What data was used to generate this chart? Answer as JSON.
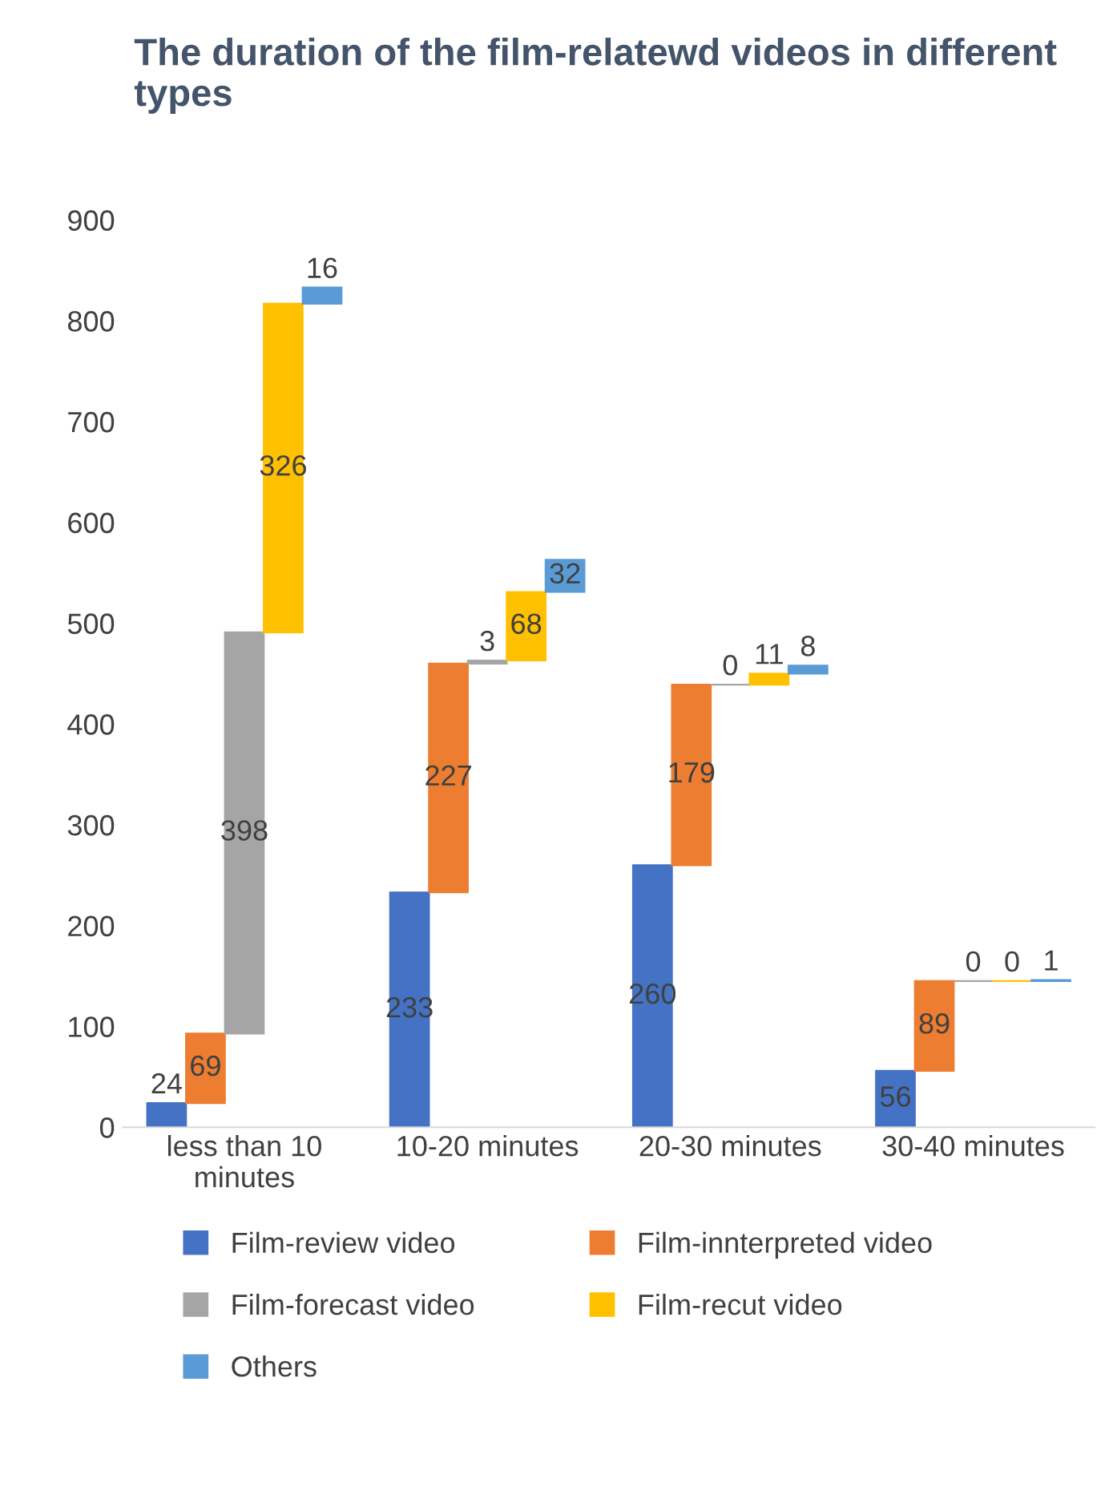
{
  "chart_data": {
    "type": "bar",
    "title": "The duration of the film-relatewd videos in different types",
    "categories": [
      "less than 10 minutes",
      "10-20 minutes",
      "20-30 minutes",
      "30-40 minutes"
    ],
    "series": [
      {
        "name": "Film-review video",
        "color": "#4472c4",
        "values": [
          24,
          233,
          260,
          56
        ],
        "base": [
          0,
          0,
          0,
          0
        ]
      },
      {
        "name": "Film-innterpreted video",
        "color": "#ed7d31",
        "values": [
          69,
          227,
          179,
          89
        ],
        "base": [
          24,
          233,
          260,
          56
        ]
      },
      {
        "name": "Film-forecast video",
        "color": "#a5a5a5",
        "values": [
          398,
          3,
          0,
          0
        ],
        "base": [
          93,
          460,
          439,
          145
        ]
      },
      {
        "name": "Film-recut video",
        "color": "#ffc000",
        "values": [
          326,
          68,
          11,
          0
        ],
        "base": [
          491,
          463,
          439,
          145
        ]
      },
      {
        "name": "Others",
        "color": "#5b9bd5",
        "values": [
          16,
          32,
          8,
          1
        ],
        "base": [
          817,
          531,
          450,
          145
        ]
      }
    ],
    "ylim": [
      0,
      900
    ],
    "yticks": [
      0,
      100,
      200,
      300,
      400,
      500,
      600,
      700,
      800,
      900
    ],
    "data_labels": true,
    "grid": false,
    "legend": "bottom"
  }
}
